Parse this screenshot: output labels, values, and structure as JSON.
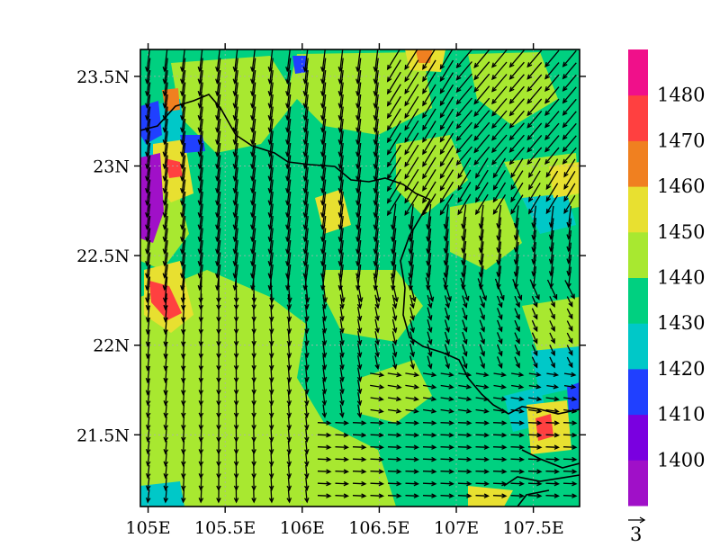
{
  "map": {
    "lat_ticks": [
      "23.5N",
      "23N",
      "22.5N",
      "22N",
      "21.5N"
    ],
    "lon_ticks": [
      "105E",
      "105.5E",
      "106E",
      "106.5E",
      "107E",
      "107.5E"
    ],
    "lon_range": [
      104.95,
      107.8
    ],
    "lat_range": [
      21.1,
      23.65
    ]
  },
  "colorbar": {
    "labels": [
      "1400",
      "1410",
      "1420",
      "1430",
      "1440",
      "1450",
      "1460",
      "1470",
      "1480"
    ],
    "colors": [
      "#a010c8",
      "#7a00e0",
      "#2040ff",
      "#00c8c8",
      "#00d080",
      "#a8e830",
      "#e8e030",
      "#f08020",
      "#ff4040",
      "#f0108a"
    ]
  },
  "vector_ref": {
    "label": "3"
  },
  "fill_colors": {
    "base_green": "#00d080",
    "light_green": "#a8e830",
    "yellow": "#e8e030",
    "orange": "#f08020",
    "red": "#ff4040",
    "cyan": "#00c8c8",
    "blue": "#2040ff",
    "purple": "#a010c8"
  }
}
